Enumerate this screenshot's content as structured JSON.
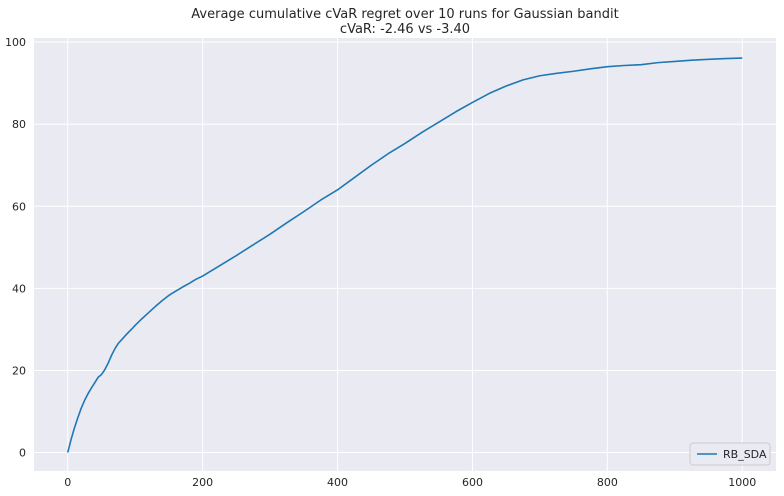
{
  "chart_data": {
    "type": "line",
    "title": "Average cumulative cVaR regret over 10 runs for Gaussian bandit",
    "subtitle": "cVaR: -2.46 vs -3.40",
    "xlabel": "",
    "ylabel": "",
    "xlim": [
      -50,
      1050
    ],
    "ylim": [
      -4.5,
      101
    ],
    "xticks": [
      0,
      200,
      400,
      600,
      800,
      1000
    ],
    "yticks": [
      0,
      20,
      40,
      60,
      80,
      100
    ],
    "grid": true,
    "legend_position": "lower-right",
    "colors": {
      "background": "#EAEAF2",
      "grid": "#FFFFFF",
      "line": "#1F77B4"
    },
    "series": [
      {
        "name": "RB_SDA",
        "x": [
          0,
          5,
          10,
          15,
          20,
          25,
          30,
          35,
          40,
          45,
          50,
          55,
          60,
          65,
          70,
          75,
          80,
          85,
          90,
          95,
          100,
          110,
          120,
          130,
          140,
          150,
          160,
          170,
          180,
          190,
          200,
          225,
          250,
          275,
          300,
          325,
          350,
          375,
          400,
          425,
          450,
          475,
          500,
          525,
          550,
          575,
          600,
          625,
          650,
          675,
          700,
          725,
          750,
          775,
          800,
          825,
          850,
          875,
          900,
          925,
          950,
          975,
          1000
        ],
        "y": [
          0,
          3.2,
          6.0,
          8.5,
          10.8,
          12.7,
          14.3,
          15.7,
          17.0,
          18.3,
          19.0,
          20.2,
          21.8,
          23.7,
          25.3,
          26.6,
          27.5,
          28.4,
          29.3,
          30.1,
          31.0,
          32.6,
          34.1,
          35.6,
          37.0,
          38.3,
          39.3,
          40.3,
          41.2,
          42.2,
          43.0,
          45.5,
          48.0,
          50.6,
          53.2,
          56.0,
          58.7,
          61.5,
          64.0,
          67.0,
          70.0,
          72.8,
          75.3,
          78.0,
          80.5,
          83.0,
          85.3,
          87.5,
          89.3,
          90.8,
          91.8,
          92.4,
          92.9,
          93.5,
          94.0,
          94.3,
          94.5,
          95.0,
          95.3,
          95.6,
          95.8,
          96.0,
          96.1
        ]
      }
    ]
  }
}
